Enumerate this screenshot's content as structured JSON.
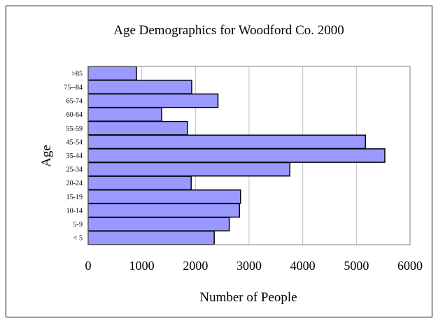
{
  "chart_data": {
    "type": "bar",
    "orientation": "horizontal",
    "title": "Age Demographics for Woodford Co. 2000",
    "xlabel": "Number of People",
    "ylabel": "Age",
    "categories": [
      ">85",
      "75--84",
      "65-74",
      "60-64",
      "55-59",
      "45-54",
      "35-44",
      "25-34",
      "20-24",
      "15-19",
      "10-14",
      "5-9",
      "< 5"
    ],
    "values": [
      900,
      1930,
      2420,
      1370,
      1850,
      5170,
      5530,
      3760,
      1920,
      2840,
      2820,
      2630,
      2350
    ],
    "xlim": [
      0,
      6000
    ],
    "xticks": [
      "0",
      "1000",
      "2000",
      "3000",
      "4000",
      "5000",
      "6000"
    ],
    "grid": "vertical",
    "legend": "none",
    "colors": {
      "bar_fill": "#9999ff",
      "bar_stroke": "#000000",
      "grid": "#c0c0c0",
      "axis": "#808080"
    }
  }
}
